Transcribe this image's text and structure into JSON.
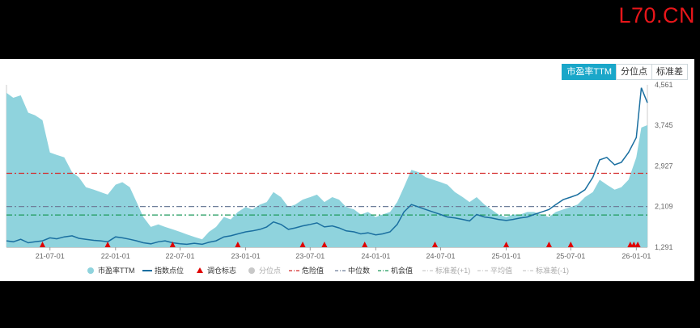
{
  "watermark": "L70.CN",
  "tabs": [
    {
      "label": "市盈率TTM",
      "active": true
    },
    {
      "label": "分位点",
      "active": false
    },
    {
      "label": "标准差",
      "active": false
    }
  ],
  "colors": {
    "pe_area": "#8fd3dd",
    "index_line": "#1a6fa0",
    "danger": "#d42a2a",
    "median": "#6f7f9a",
    "opportunity": "#1f9a5c",
    "marker": "#e00000"
  },
  "chart_data": {
    "type": "area",
    "y_right_ticks": [
      1291,
      2109,
      2927,
      3745,
      4561
    ],
    "ylim": [
      1291,
      4561
    ],
    "x_ticks": [
      "21-07-01",
      "22-01-01",
      "22-07-01",
      "23-01-01",
      "23-07-01",
      "24-01-01",
      "24-07-01",
      "25-01-01",
      "25-07-01",
      "26-01-01"
    ],
    "xlim": [
      "2021-03-01",
      "2026-02-01"
    ],
    "reference_lines": {
      "danger": 2780,
      "median": 2110,
      "opportunity": 1940
    },
    "series": [
      {
        "name": "市盈率TTM",
        "type": "area",
        "x": [
          "2021-03-01",
          "2021-03-20",
          "2021-04-10",
          "2021-05-01",
          "2021-05-20",
          "2021-06-10",
          "2021-07-01",
          "2021-07-20",
          "2021-08-10",
          "2021-09-01",
          "2021-09-20",
          "2021-10-10",
          "2021-11-01",
          "2021-11-20",
          "2021-12-10",
          "2022-01-01",
          "2022-01-20",
          "2022-02-10",
          "2022-03-01",
          "2022-03-20",
          "2022-04-10",
          "2022-05-01",
          "2022-05-20",
          "2022-06-10",
          "2022-07-01",
          "2022-07-20",
          "2022-08-10",
          "2022-09-01",
          "2022-09-20",
          "2022-10-10",
          "2022-11-01",
          "2022-11-20",
          "2022-12-10",
          "2023-01-01",
          "2023-01-20",
          "2023-02-10",
          "2023-03-01",
          "2023-03-20",
          "2023-04-10",
          "2023-05-01",
          "2023-05-20",
          "2023-06-10",
          "2023-07-01",
          "2023-07-20",
          "2023-08-10",
          "2023-09-01",
          "2023-09-20",
          "2023-10-10",
          "2023-11-01",
          "2023-11-20",
          "2023-12-10",
          "2024-01-01",
          "2024-01-20",
          "2024-02-10",
          "2024-03-01",
          "2024-03-20",
          "2024-04-10",
          "2024-05-01",
          "2024-05-20",
          "2024-06-10",
          "2024-07-01",
          "2024-07-20",
          "2024-08-10",
          "2024-09-01",
          "2024-09-20",
          "2024-10-10",
          "2024-11-01",
          "2024-11-20",
          "2024-12-10",
          "2025-01-01",
          "2025-01-20",
          "2025-02-10",
          "2025-03-01",
          "2025-03-20",
          "2025-04-10",
          "2025-05-01",
          "2025-05-20",
          "2025-06-10",
          "2025-07-01",
          "2025-07-20",
          "2025-08-10",
          "2025-09-01",
          "2025-09-20",
          "2025-10-10",
          "2025-11-01",
          "2025-11-20",
          "2025-12-10",
          "2026-01-01",
          "2026-01-15",
          "2026-02-01"
        ],
        "values": [
          4400,
          4300,
          4350,
          4000,
          3950,
          3850,
          3200,
          3150,
          3100,
          2800,
          2700,
          2500,
          2450,
          2400,
          2350,
          2550,
          2600,
          2500,
          2200,
          1900,
          1700,
          1750,
          1700,
          1650,
          1600,
          1550,
          1500,
          1450,
          1600,
          1700,
          1900,
          1850,
          2000,
          2100,
          2050,
          2150,
          2200,
          2400,
          2300,
          2100,
          2150,
          2250,
          2300,
          2350,
          2200,
          2300,
          2250,
          2100,
          2050,
          1950,
          2000,
          1900,
          1950,
          2000,
          2200,
          2500,
          2850,
          2800,
          2700,
          2650,
          2600,
          2550,
          2400,
          2300,
          2200,
          2300,
          2150,
          2050,
          1950,
          1900,
          1950,
          1950,
          2000,
          2000,
          1950,
          1900,
          2000,
          2050,
          2100,
          2150,
          2300,
          2400,
          2650,
          2550,
          2450,
          2500,
          2650,
          3100,
          3700,
          3750
        ]
      },
      {
        "name": "指数点位",
        "type": "line",
        "x": [
          "2021-03-01",
          "2021-03-20",
          "2021-04-10",
          "2021-05-01",
          "2021-05-20",
          "2021-06-10",
          "2021-07-01",
          "2021-07-20",
          "2021-08-10",
          "2021-09-01",
          "2021-09-20",
          "2021-10-10",
          "2021-11-01",
          "2021-11-20",
          "2021-12-10",
          "2022-01-01",
          "2022-01-20",
          "2022-02-10",
          "2022-03-01",
          "2022-03-20",
          "2022-04-10",
          "2022-05-01",
          "2022-05-20",
          "2022-06-10",
          "2022-07-01",
          "2022-07-20",
          "2022-08-10",
          "2022-09-01",
          "2022-09-20",
          "2022-10-10",
          "2022-11-01",
          "2022-11-20",
          "2022-12-10",
          "2023-01-01",
          "2023-01-20",
          "2023-02-10",
          "2023-03-01",
          "2023-03-20",
          "2023-04-10",
          "2023-05-01",
          "2023-05-20",
          "2023-06-10",
          "2023-07-01",
          "2023-07-20",
          "2023-08-10",
          "2023-09-01",
          "2023-09-20",
          "2023-10-10",
          "2023-11-01",
          "2023-11-20",
          "2023-12-10",
          "2024-01-01",
          "2024-01-20",
          "2024-02-10",
          "2024-03-01",
          "2024-03-20",
          "2024-04-10",
          "2024-05-01",
          "2024-05-20",
          "2024-06-10",
          "2024-07-01",
          "2024-07-20",
          "2024-08-10",
          "2024-09-01",
          "2024-09-20",
          "2024-10-10",
          "2024-11-01",
          "2024-11-20",
          "2024-12-10",
          "2025-01-01",
          "2025-01-20",
          "2025-02-10",
          "2025-03-01",
          "2025-03-20",
          "2025-04-10",
          "2025-05-01",
          "2025-05-20",
          "2025-06-10",
          "2025-07-01",
          "2025-07-20",
          "2025-08-10",
          "2025-09-01",
          "2025-09-20",
          "2025-10-10",
          "2025-11-01",
          "2025-11-20",
          "2025-12-10",
          "2026-01-01",
          "2026-01-15",
          "2026-02-01"
        ],
        "values": [
          1420,
          1400,
          1450,
          1380,
          1400,
          1420,
          1480,
          1460,
          1500,
          1520,
          1470,
          1450,
          1430,
          1420,
          1400,
          1500,
          1480,
          1450,
          1420,
          1380,
          1360,
          1400,
          1420,
          1380,
          1360,
          1350,
          1370,
          1350,
          1390,
          1420,
          1500,
          1520,
          1560,
          1600,
          1620,
          1650,
          1700,
          1800,
          1750,
          1650,
          1680,
          1720,
          1750,
          1780,
          1700,
          1720,
          1680,
          1620,
          1600,
          1560,
          1580,
          1540,
          1560,
          1600,
          1750,
          2000,
          2150,
          2100,
          2050,
          2000,
          1950,
          1900,
          1880,
          1850,
          1820,
          1950,
          1900,
          1880,
          1850,
          1830,
          1850,
          1880,
          1900,
          1950,
          2000,
          2050,
          2150,
          2250,
          2300,
          2350,
          2450,
          2700,
          3050,
          3100,
          2950,
          3000,
          3200,
          3500,
          4500,
          4200
        ]
      },
      {
        "name": "调仓标志",
        "type": "scatter",
        "x": [
          "2021-06-10",
          "2021-12-10",
          "2022-06-10",
          "2022-12-10",
          "2023-06-10",
          "2023-08-10",
          "2023-12-01",
          "2024-06-15",
          "2025-01-01",
          "2025-05-01",
          "2025-07-01",
          "2025-12-15",
          "2025-12-25",
          "2026-01-05"
        ]
      },
      {
        "name": "分位点",
        "type": "line"
      },
      {
        "name": "危险值",
        "type": "line"
      },
      {
        "name": "中位数",
        "type": "line"
      },
      {
        "name": "机会值",
        "type": "line"
      },
      {
        "name": "标准差(+1)",
        "type": "line"
      },
      {
        "name": "平均值",
        "type": "line"
      },
      {
        "name": "标准差(-1)",
        "type": "line"
      }
    ]
  },
  "legend": [
    {
      "label": "市盈率TTM",
      "icon": "circle",
      "color": "#8fd3dd",
      "muted": false
    },
    {
      "label": "指数点位",
      "icon": "line",
      "color": "#1a6fa0",
      "muted": false
    },
    {
      "label": "调仓标志",
      "icon": "triangle",
      "color": "#e00000",
      "muted": false
    },
    {
      "label": "分位点",
      "icon": "circle",
      "color": "#c8c8c8",
      "muted": true
    },
    {
      "label": "危险值",
      "icon": "dashdot",
      "color": "#d42a2a",
      "muted": false
    },
    {
      "label": "中位数",
      "icon": "dashdot",
      "color": "#6f7f9a",
      "muted": false
    },
    {
      "label": "机会值",
      "icon": "dashdot",
      "color": "#1f9a5c",
      "muted": false
    },
    {
      "label": "标准差(+1)",
      "icon": "dashdot",
      "color": "#cccccc",
      "muted": true
    },
    {
      "label": "平均值",
      "icon": "dashdot",
      "color": "#cccccc",
      "muted": true
    },
    {
      "label": "标准差(-1)",
      "icon": "dashdot",
      "color": "#cccccc",
      "muted": true
    }
  ]
}
